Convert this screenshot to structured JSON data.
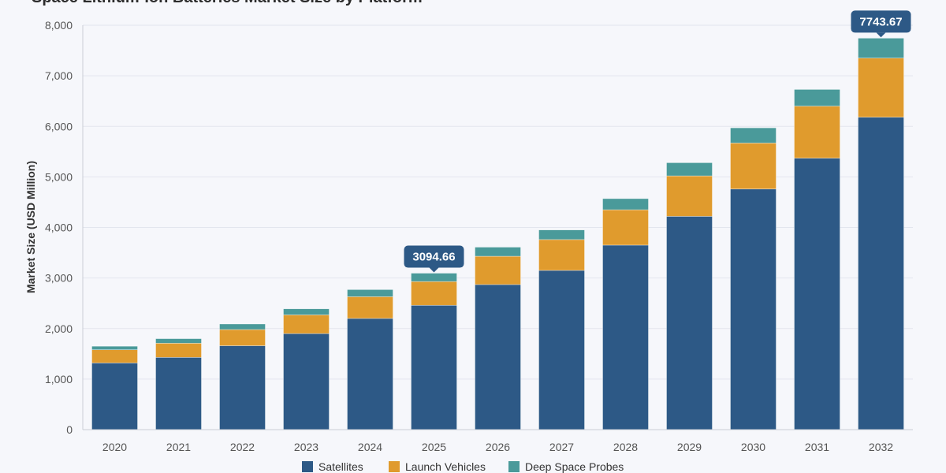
{
  "chart_data": {
    "type": "bar",
    "stacked": true,
    "title": "Space Lithium-Ion Batteries Market Size by Platform",
    "xlabel": "",
    "ylabel": "Market Size (USD Million)",
    "ylim": [
      0,
      8000
    ],
    "yticks": [
      0,
      1000,
      2000,
      3000,
      4000,
      5000,
      6000,
      7000,
      8000
    ],
    "ytick_labels": [
      "0",
      "1,000",
      "2,000",
      "3,000",
      "4,000",
      "5,000",
      "6,000",
      "7,000",
      "8,000"
    ],
    "grid": true,
    "legend_position": "bottom",
    "categories": [
      "2020",
      "2021",
      "2022",
      "2023",
      "2024",
      "2025",
      "2026",
      "2027",
      "2028",
      "2029",
      "2030",
      "2031",
      "2032"
    ],
    "series": [
      {
        "name": "Satellites",
        "color": "#2d5986",
        "values": [
          1320,
          1430,
          1660,
          1900,
          2200,
          2460,
          2870,
          3150,
          3650,
          4220,
          4760,
          5370,
          6180
        ]
      },
      {
        "name": "Launch Vehicles",
        "color": "#e09b2d",
        "values": [
          260,
          280,
          320,
          370,
          430,
          470,
          560,
          610,
          700,
          800,
          910,
          1030,
          1170
        ]
      },
      {
        "name": "Deep Space Probes",
        "color": "#4a9a9a",
        "values": [
          70,
          90,
          110,
          120,
          140,
          165,
          180,
          190,
          220,
          260,
          300,
          330,
          394
        ]
      }
    ],
    "annotations": [
      {
        "category": "2025",
        "text": "3094.66"
      },
      {
        "category": "2032",
        "text": "7743.67"
      }
    ]
  }
}
